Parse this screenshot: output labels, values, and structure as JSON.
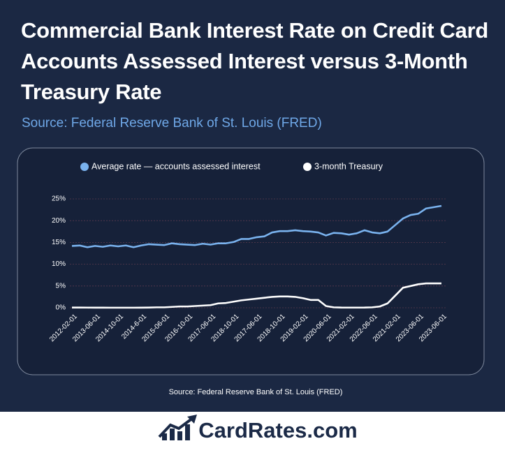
{
  "chart_data": {
    "type": "line",
    "title": "Commercial Bank Interest Rate on Credit Card Accounts Assessed Interest versus 3-Month Treasury Rate",
    "subtitle": "Source: Federal Reserve Bank of St. Louis (FRED)",
    "note": "Source: Federal Reserve Bank of St. Louis (FRED)",
    "categories": [
      "2012-02-01",
      null,
      null,
      "2013-06-01",
      null,
      null,
      "2014-10-01",
      null,
      null,
      "2014-6-01",
      null,
      null,
      "2015-06-01",
      null,
      null,
      "2016-10-01",
      null,
      null,
      "2017-06-01",
      null,
      null,
      "2018-10-01",
      null,
      null,
      "2017-06-01",
      null,
      null,
      "2018-10-01",
      null,
      null,
      "2019-02-01",
      null,
      null,
      "2020-06-01",
      null,
      null,
      "2021-02-01",
      null,
      null,
      "2022-06-01",
      null,
      null,
      "2021-02-01",
      null,
      null,
      "2023-06-01",
      null,
      null,
      "2023-06-01"
    ],
    "series": [
      {
        "name": "Average rate — accounts assessed interest",
        "color": "#7ab3ef",
        "values": [
          14.2,
          14.3,
          13.9,
          14.2,
          14.0,
          14.3,
          14.1,
          14.3,
          13.9,
          14.3,
          14.6,
          14.5,
          14.4,
          14.8,
          14.6,
          14.5,
          14.4,
          14.7,
          14.5,
          14.8,
          14.8,
          15.1,
          15.8,
          15.8,
          16.2,
          16.4,
          17.3,
          17.6,
          17.6,
          17.8,
          17.6,
          17.5,
          17.3,
          16.6,
          17.2,
          17.1,
          16.8,
          17.1,
          17.8,
          17.3,
          17.1,
          17.5,
          19.0,
          20.5,
          21.3,
          21.6,
          22.8,
          23.1,
          23.4
        ]
      },
      {
        "name": "3-month Treasury",
        "color": "#ffffff",
        "values": [
          0.05,
          0.05,
          0.04,
          0.03,
          0.03,
          0.02,
          0.02,
          0.02,
          0.02,
          0.03,
          0.05,
          0.1,
          0.1,
          0.2,
          0.3,
          0.3,
          0.4,
          0.5,
          0.6,
          1.0,
          1.1,
          1.4,
          1.7,
          1.9,
          2.1,
          2.3,
          2.5,
          2.6,
          2.6,
          2.5,
          2.2,
          1.8,
          1.8,
          0.4,
          0.1,
          0.05,
          0.04,
          0.04,
          0.05,
          0.1,
          0.3,
          1.0,
          2.8,
          4.6,
          5.0,
          5.4,
          5.6,
          5.6,
          5.6
        ]
      }
    ],
    "ylim": [
      0,
      25
    ],
    "yticks": [
      {
        "value": 0,
        "label": "0%"
      },
      {
        "value": 5,
        "label": "5%"
      },
      {
        "value": 10,
        "label": "10%"
      },
      {
        "value": 15,
        "label": "15%"
      },
      {
        "value": 20,
        "label": "20%"
      },
      {
        "value": 25,
        "label": "25%"
      }
    ],
    "grid": true
  },
  "footer": {
    "brand": "CardRates.com"
  }
}
